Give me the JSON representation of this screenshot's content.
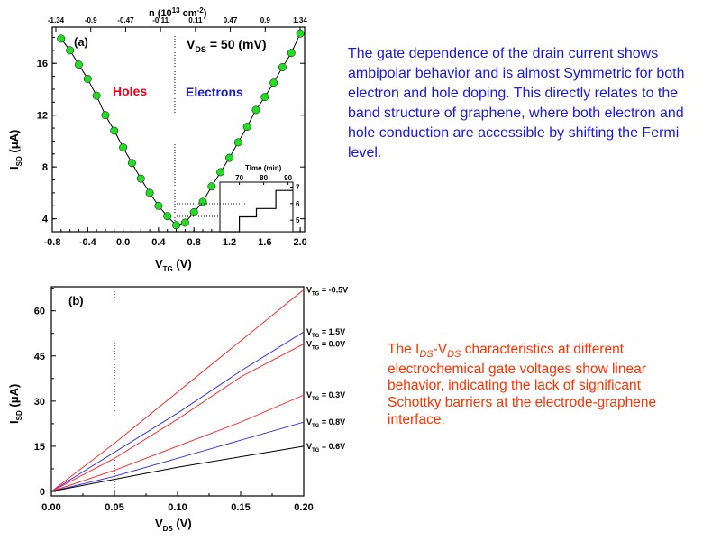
{
  "chart_data": [
    {
      "type": "scatter",
      "panel_label": "(a)",
      "xlabel": "V",
      "xlabel_sub": "TG",
      "xlabel_unit": " (V)",
      "ylabel": "I",
      "ylabel_sub": "SD",
      "ylabel_unit": " (μA)",
      "top_axis_label": "n (10",
      "top_axis_label_sup": "13",
      "top_axis_label_unit": " cm",
      "top_axis_label_unit_sup": "-2",
      "top_axis_label_close": ")",
      "annotation_vds": "V",
      "annotation_vds_sub": "DS",
      "annotation_vds_value": "= 50 (mV)",
      "region_labels": {
        "holes": "Holes",
        "electrons": "Electrons"
      },
      "region_colors": {
        "holes": "#e8001c",
        "electrons": "#1a1acc"
      },
      "xlim": [
        -0.8,
        2.05
      ],
      "ylim": [
        3.0,
        18.8
      ],
      "xticks": [
        "-0.8",
        "-0.4",
        "0.0",
        "0.4",
        "0.8",
        "1.2",
        "1.6",
        "2.0"
      ],
      "yticks": [
        "4",
        "8",
        "12",
        "16"
      ],
      "top_ticks": [
        "-1.34",
        "-0.9",
        "-0.47",
        "-0.11",
        "0.11",
        "0.47",
        "0.9",
        "1.34"
      ],
      "marker_color": "#22dd22",
      "series": [
        {
          "x": [
            -0.7,
            -0.6,
            -0.5,
            -0.4,
            -0.3,
            -0.2,
            -0.1,
            0.0,
            0.1,
            0.2,
            0.3,
            0.4,
            0.5,
            0.6,
            0.7,
            0.8,
            0.9,
            1.0,
            1.1,
            1.2,
            1.3,
            1.4,
            1.5,
            1.6,
            1.7,
            1.8,
            1.9,
            2.0
          ],
          "y": [
            17.9,
            17.0,
            15.9,
            14.8,
            13.5,
            12.0,
            10.8,
            9.5,
            8.3,
            7.1,
            6.0,
            5.0,
            4.2,
            3.5,
            3.7,
            4.5,
            5.3,
            6.5,
            7.6,
            8.7,
            9.9,
            11.1,
            12.4,
            13.4,
            14.5,
            15.7,
            16.8,
            18.3
          ]
        }
      ],
      "inset": {
        "xlabel": "Time (min)",
        "xticks": [
          "70",
          "80",
          "90"
        ],
        "yticks": [
          "5",
          "6",
          "7"
        ],
        "xlim": [
          62,
          92
        ],
        "ylim": [
          4.3,
          7.3
        ],
        "steps": [
          [
            62,
            4.3
          ],
          [
            70,
            4.3
          ],
          [
            70,
            5.2
          ],
          [
            77,
            5.2
          ],
          [
            77,
            5.7
          ],
          [
            85,
            5.7
          ],
          [
            85,
            6.8
          ],
          [
            92,
            6.8
          ]
        ]
      }
    },
    {
      "type": "line",
      "panel_label": "(b)",
      "xlabel": "V",
      "xlabel_sub": "DS",
      "xlabel_unit": " (V)",
      "ylabel": "I",
      "ylabel_sub": "SD",
      "ylabel_unit": " (μA)",
      "xlim": [
        0.0,
        0.2
      ],
      "ylim": [
        -1.5,
        68
      ],
      "xticks": [
        "0.00",
        "0.05",
        "0.10",
        "0.15",
        "0.20"
      ],
      "yticks": [
        "0",
        "15",
        "30",
        "45",
        "60"
      ],
      "series": [
        {
          "label_main": "V",
          "label_sub": "TG",
          "label_value": " = -0.5V",
          "color": "#ff3333",
          "x": [
            0.0,
            0.05,
            0.1,
            0.15,
            0.2
          ],
          "y": [
            0,
            16,
            33,
            50,
            67
          ]
        },
        {
          "label_main": "V",
          "label_sub": "TG",
          "label_value": " = 1.5V",
          "color": "#3333ee",
          "x": [
            0.0,
            0.05,
            0.1,
            0.15,
            0.2
          ],
          "y": [
            0,
            13,
            26,
            40,
            53
          ]
        },
        {
          "label_main": "V",
          "label_sub": "TG",
          "label_value": " = 0.0V",
          "color": "#ff3333",
          "x": [
            0.0,
            0.05,
            0.1,
            0.15,
            0.2
          ],
          "y": [
            0,
            11,
            24,
            38,
            49
          ]
        },
        {
          "label_main": "V",
          "label_sub": "TG",
          "label_value": " = 0.3V",
          "color": "#ff3333",
          "x": [
            0.0,
            0.05,
            0.1,
            0.15,
            0.2
          ],
          "y": [
            0,
            7,
            15,
            23,
            32
          ]
        },
        {
          "label_main": "V",
          "label_sub": "TG",
          "label_value": " = 0.8V",
          "color": "#3333ee",
          "x": [
            0.0,
            0.05,
            0.1,
            0.15,
            0.2
          ],
          "y": [
            0,
            5,
            11,
            17,
            23
          ]
        },
        {
          "label_main": "V",
          "label_sub": "TG",
          "label_value": " = 0.6V",
          "color": "#000000",
          "x": [
            0.0,
            0.05,
            0.1,
            0.15,
            0.2
          ],
          "y": [
            0,
            4,
            8,
            11.5,
            15
          ]
        }
      ]
    }
  ],
  "descriptions": {
    "a": "The gate dependence of the drain current shows ambipolar behavior and is almost Symmetric for both electron and hole doping. This directly relates to the band structure of graphene, where both electron and hole conduction are accessible by shifting the Fermi level.",
    "b_part1": "The I",
    "b_sub1": "DS",
    "b_part2": "-V",
    "b_sub2": "DS",
    "b_part3": " characteristics at different electrochemical gate voltages show linear behavior, indicating the lack of significant Schottky barriers at the electrode-graphene interface."
  }
}
